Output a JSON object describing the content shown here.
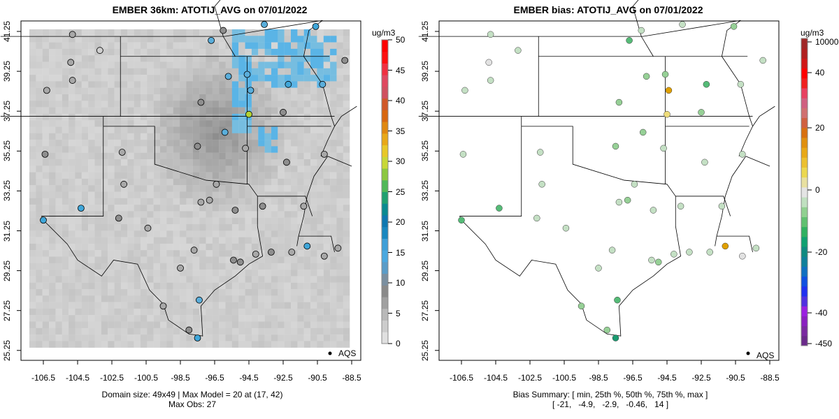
{
  "left": {
    "title": "EMBER 36km: ATOTIJ_AVG on 07/01/2022",
    "unit": "ug/m3",
    "footer1": "Domain size: 49x49 | Max Model = 20 at (17, 42)",
    "footer2": "Max Obs: 27",
    "legend": "AQS",
    "colorbar_ticks": [
      "0",
      "5",
      "10",
      "15",
      "20",
      "25",
      "30",
      "35",
      "40",
      "45",
      "50"
    ]
  },
  "right": {
    "title": "EMBER bias: ATOTIJ_AVG on 07/01/2022",
    "unit": "ug/m3",
    "footer1": "Bias Summary: [ min, 25th %, 50th %, 75th %, max ]",
    "footer2": "[ -21,   -4.9,   -2.9,   -0.46,   14 ]",
    "legend": "AQS",
    "colorbar_ticks": [
      "10000",
      "40",
      "20",
      "0",
      "-20",
      "-40",
      "-450"
    ]
  },
  "x_ticks": [
    "-106.5",
    "-104.5",
    "-102.5",
    "-100.5",
    "-98.5",
    "-96.5",
    "-94.5",
    "-92.5",
    "-90.5",
    "-88.5"
  ],
  "y_ticks": [
    "41.25",
    "39.25",
    "37.25",
    "35.25",
    "33.25",
    "31.25",
    "29.25",
    "27.25",
    "25.25"
  ],
  "stations": [
    [
      -106.4,
      35.1,
      6,
      -2
    ],
    [
      -106.5,
      31.8,
      14,
      -8
    ],
    [
      -104.8,
      41.1,
      4,
      -2
    ],
    [
      -104.9,
      39.7,
      5,
      -1
    ],
    [
      -104.8,
      38.8,
      4,
      -2
    ],
    [
      -103.2,
      40.3,
      3,
      -3
    ],
    [
      -104.3,
      32.4,
      13,
      -10
    ],
    [
      -101.9,
      35.2,
      4,
      -3
    ],
    [
      -101.8,
      33.6,
      5,
      -2
    ],
    [
      -99.5,
      27.5,
      4,
      -6
    ],
    [
      -98.5,
      29.4,
      4,
      -4
    ],
    [
      -97.7,
      30.3,
      5,
      -3
    ],
    [
      -97.4,
      27.8,
      9,
      -10
    ],
    [
      -97.5,
      25.9,
      12,
      -12
    ],
    [
      -96.8,
      32.8,
      5,
      -5
    ],
    [
      -97.3,
      32.7,
      5,
      -4
    ],
    [
      -95.4,
      29.8,
      6,
      -4
    ],
    [
      -95.0,
      29.7,
      8,
      -5
    ],
    [
      -94.1,
      30.1,
      5,
      -3
    ],
    [
      -93.7,
      32.5,
      6,
      -2
    ],
    [
      -97.5,
      35.5,
      6,
      -5
    ],
    [
      -95.9,
      36.2,
      9,
      -7
    ],
    [
      -94.6,
      39.1,
      10,
      -6
    ],
    [
      -95.7,
      39.0,
      11,
      -7
    ],
    [
      -97.3,
      37.7,
      7,
      -6
    ],
    [
      -94.5,
      37.1,
      20,
      8
    ],
    [
      -94.4,
      38.3,
      11,
      12
    ],
    [
      -92.3,
      34.7,
      6,
      -3
    ],
    [
      -90.2,
      38.6,
      10,
      -4
    ],
    [
      -90.6,
      41.5,
      12,
      -5
    ],
    [
      -93.6,
      41.6,
      10,
      -3
    ],
    [
      -96.0,
      41.3,
      8,
      -4
    ],
    [
      -92.2,
      38.6,
      12,
      -9
    ],
    [
      -90.1,
      35.1,
      5,
      -2
    ],
    [
      -90.1,
      30.0,
      4,
      -1
    ],
    [
      -91.1,
      30.5,
      13,
      10
    ],
    [
      -89.3,
      30.4,
      5,
      -2
    ],
    [
      -91.3,
      32.5,
      4,
      -3
    ],
    [
      -88.9,
      39.8,
      6,
      -3
    ],
    [
      -96.7,
      40.8,
      9,
      -8
    ],
    [
      -98.0,
      26.3,
      7,
      -5
    ],
    [
      -100.4,
      31.4,
      4,
      -3
    ],
    [
      -106.3,
      38.3,
      4,
      -2
    ],
    [
      -102.1,
      31.9,
      6,
      -3
    ],
    [
      -96.4,
      33.6,
      5,
      -4
    ],
    [
      -95.3,
      32.3,
      6,
      -4
    ],
    [
      -92.0,
      30.2,
      4,
      -2
    ],
    [
      -93.2,
      30.2,
      6,
      -3
    ],
    [
      -94.7,
      35.4,
      4,
      -3
    ],
    [
      -92.5,
      37.2,
      7,
      -6
    ]
  ]
}
